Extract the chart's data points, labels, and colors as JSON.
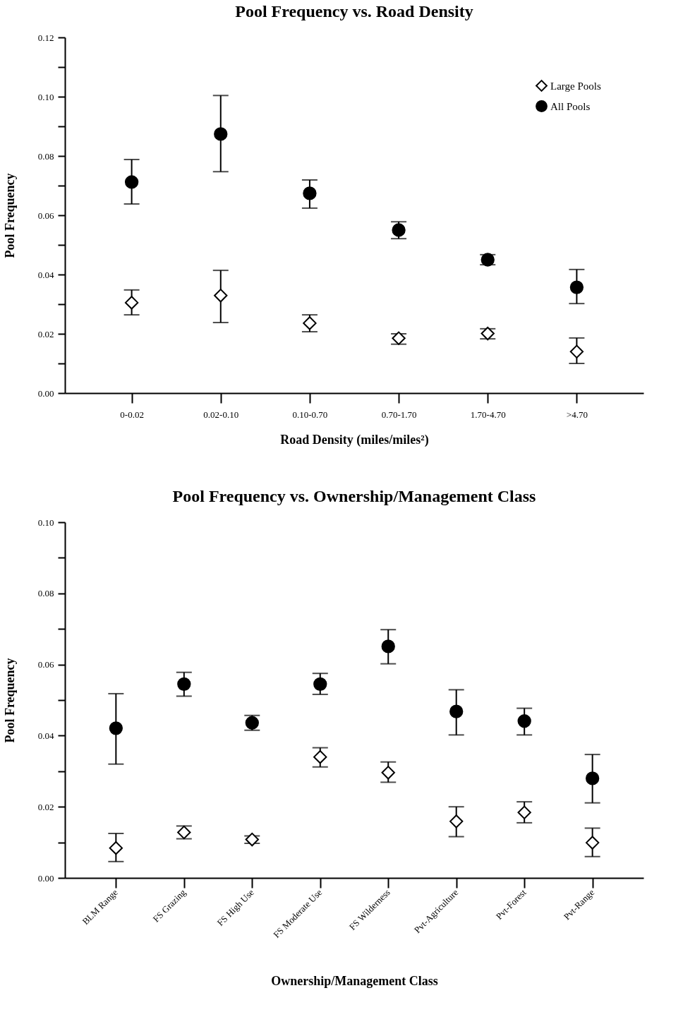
{
  "chart_data": [
    {
      "type": "scatter",
      "title": "Pool Frequency vs. Road Density",
      "xlabel": "Road Density (miles/miles²)",
      "ylabel": "Pool Frequency",
      "categories": [
        "0-0.02",
        "0.02-0.10",
        "0.10-0.70",
        "0.70-1.70",
        "1.70-4.70",
        ">4.70"
      ],
      "series": [
        {
          "name": "Large Pools",
          "color": "#000000",
          "marker": "diamond",
          "values": [
            0.0305,
            0.0329,
            0.0236,
            0.0185,
            0.0201,
            0.014
          ],
          "errors": [
            [
              0.0264,
              0.0348
            ],
            [
              0.0238,
              0.0414
            ],
            [
              0.0207,
              0.0264
            ],
            [
              0.0165,
              0.02
            ],
            [
              0.0183,
              0.0217
            ],
            [
              0.01,
              0.0186
            ]
          ]
        },
        {
          "name": "All Pools",
          "color": "#000000",
          "marker": "circle",
          "values": [
            0.0712,
            0.0874,
            0.0674,
            0.055,
            0.045,
            0.0357
          ],
          "errors": [
            [
              0.0638,
              0.0788
            ],
            [
              0.0747,
              0.1004
            ],
            [
              0.0624,
              0.0719
            ],
            [
              0.0521,
              0.0578
            ],
            [
              0.0433,
              0.0467
            ],
            [
              0.0302,
              0.0417
            ]
          ]
        }
      ],
      "ylim": [
        0,
        0.12
      ],
      "yticks": [
        {
          "value": 0,
          "label": "0.00"
        },
        {
          "value": 0.01,
          "label": null
        },
        {
          "value": 0.02,
          "label": "0.02"
        },
        {
          "value": 0.03,
          "label": null
        },
        {
          "value": 0.04,
          "label": "0.04"
        },
        {
          "value": 0.05,
          "label": null
        },
        {
          "value": 0.06,
          "label": "0.06"
        },
        {
          "value": 0.07,
          "label": null
        },
        {
          "value": 0.08,
          "label": "0.08"
        },
        {
          "value": 0.09,
          "label": null
        },
        {
          "value": 0.1,
          "label": "0.10"
        },
        {
          "value": 0.11,
          "label": null
        },
        {
          "value": 0.12,
          "label": "0.12"
        }
      ],
      "legend": "top right"
    },
    {
      "type": "scatter",
      "title": "Pool Frequency vs. Ownership/Management Class",
      "xlabel": "Ownership/Management Class",
      "ylabel": "Pool Frequency",
      "categories": [
        "BLM Range",
        "FS Grazing",
        "FS High Use",
        "FS Moderate Use",
        "FS Wilderness",
        "Pvt-Agriculture",
        "Pvt-Forest",
        "Pvt-Range"
      ],
      "series": [
        {
          "name": "Large Pools",
          "color": "#000000",
          "marker": "diamond",
          "values": [
            0.0084,
            0.0128,
            0.0108,
            0.034,
            0.0296,
            0.0159,
            0.0184,
            0.0099
          ],
          "errors": [
            [
              0.0046,
              0.0125
            ],
            [
              0.011,
              0.0146
            ],
            [
              0.0097,
              0.0118
            ],
            [
              0.0312,
              0.0366
            ],
            [
              0.0269,
              0.0326
            ],
            [
              0.0116,
              0.02
            ],
            [
              0.0155,
              0.0214
            ],
            [
              0.006,
              0.014
            ]
          ]
        },
        {
          "name": "All Pools",
          "color": "#000000",
          "marker": "circle",
          "values": [
            0.0421,
            0.0545,
            0.0436,
            0.0545,
            0.0651,
            0.0468,
            0.0441,
            0.028
          ],
          "errors": [
            [
              0.032,
              0.0518
            ],
            [
              0.0511,
              0.0578
            ],
            [
              0.0415,
              0.0457
            ],
            [
              0.0516,
              0.0575
            ],
            [
              0.0602,
              0.0698
            ],
            [
              0.0402,
              0.0529
            ],
            [
              0.0402,
              0.0477
            ],
            [
              0.0211,
              0.0347
            ]
          ]
        }
      ],
      "ylim": [
        0,
        0.1
      ],
      "yticks": [
        {
          "value": 0,
          "label": "0.00"
        },
        {
          "value": 0.01,
          "label": null
        },
        {
          "value": 0.02,
          "label": "0.02"
        },
        {
          "value": 0.03,
          "label": null
        },
        {
          "value": 0.04,
          "label": "0.04"
        },
        {
          "value": 0.05,
          "label": null
        },
        {
          "value": 0.06,
          "label": "0.06"
        },
        {
          "value": 0.07,
          "label": null
        },
        {
          "value": 0.08,
          "label": "0.08"
        },
        {
          "value": 0.09,
          "label": null
        },
        {
          "value": 0.1,
          "label": "0.10"
        }
      ],
      "legend": "top right"
    }
  ]
}
